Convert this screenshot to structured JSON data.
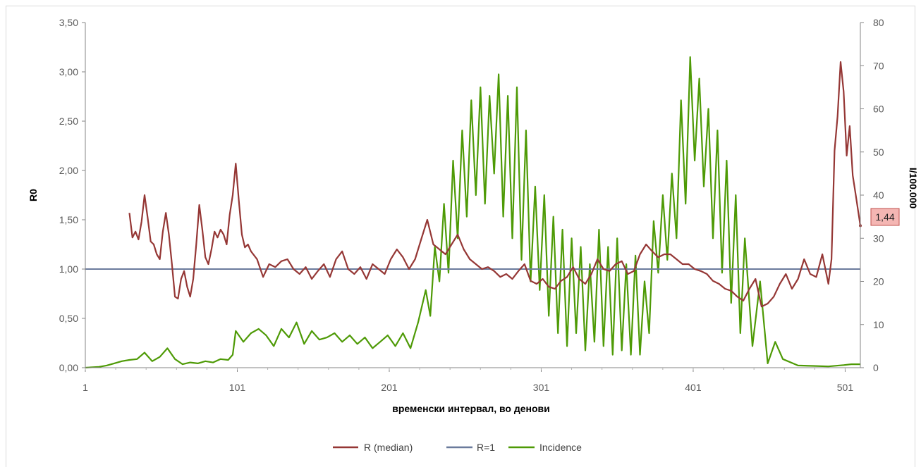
{
  "chart_data": {
    "type": "line",
    "xlabel": "временски интервал, во денови",
    "ylabel_left": "R0",
    "ylabel_right": "I/100.000",
    "x_ticks": [
      "1",
      "101",
      "201",
      "301",
      "401",
      "501"
    ],
    "x_tick_values": [
      1,
      101,
      201,
      301,
      401,
      501
    ],
    "xlim": [
      1,
      511
    ],
    "ylim_left": [
      0,
      3.5
    ],
    "y_ticks_left": [
      "0,00",
      "0,50",
      "1,00",
      "1,50",
      "2,00",
      "2,50",
      "3,00",
      "3,50"
    ],
    "ylim_right": [
      0,
      80
    ],
    "y_ticks_right": [
      "0",
      "10",
      "20",
      "30",
      "40",
      "50",
      "60",
      "70",
      "80"
    ],
    "grid": false,
    "legend_position": "bottom",
    "callout": {
      "text": "1,44",
      "x": 511,
      "y": 1.44,
      "axis": "left"
    },
    "series": [
      {
        "name": "R (median)",
        "axis": "left",
        "color": "#953735",
        "x": [
          30,
          32,
          34,
          36,
          38,
          40,
          42,
          44,
          46,
          48,
          50,
          52,
          54,
          56,
          58,
          60,
          62,
          64,
          66,
          68,
          70,
          72,
          74,
          76,
          78,
          80,
          82,
          84,
          86,
          88,
          90,
          92,
          94,
          96,
          98,
          100,
          102,
          104,
          106,
          108,
          110,
          114,
          118,
          122,
          126,
          130,
          134,
          138,
          142,
          146,
          150,
          154,
          158,
          162,
          166,
          170,
          174,
          178,
          182,
          186,
          190,
          194,
          198,
          202,
          206,
          210,
          214,
          218,
          222,
          226,
          230,
          234,
          238,
          242,
          246,
          250,
          254,
          258,
          262,
          266,
          270,
          274,
          278,
          282,
          286,
          290,
          294,
          298,
          302,
          306,
          310,
          314,
          318,
          322,
          326,
          330,
          334,
          338,
          342,
          346,
          350,
          354,
          358,
          362,
          366,
          370,
          374,
          378,
          382,
          386,
          390,
          394,
          398,
          402,
          406,
          410,
          414,
          418,
          422,
          426,
          430,
          434,
          438,
          442,
          446,
          450,
          454,
          458,
          462,
          466,
          470,
          474,
          478,
          482,
          486,
          490,
          492,
          494,
          496,
          498,
          500,
          502,
          504,
          506,
          508,
          511
        ],
        "values": [
          1.57,
          1.32,
          1.38,
          1.3,
          1.48,
          1.75,
          1.52,
          1.28,
          1.25,
          1.15,
          1.1,
          1.38,
          1.57,
          1.35,
          1.05,
          0.72,
          0.7,
          0.9,
          0.98,
          0.82,
          0.72,
          0.9,
          1.25,
          1.65,
          1.4,
          1.12,
          1.05,
          1.2,
          1.38,
          1.32,
          1.4,
          1.35,
          1.25,
          1.55,
          1.75,
          2.07,
          1.7,
          1.35,
          1.22,
          1.25,
          1.18,
          1.1,
          0.92,
          1.05,
          1.02,
          1.08,
          1.1,
          1.0,
          0.95,
          1.02,
          0.9,
          0.98,
          1.05,
          0.92,
          1.1,
          1.18,
          1.0,
          0.95,
          1.02,
          0.9,
          1.05,
          1.0,
          0.95,
          1.1,
          1.2,
          1.12,
          1.0,
          1.1,
          1.3,
          1.5,
          1.25,
          1.2,
          1.15,
          1.25,
          1.35,
          1.2,
          1.1,
          1.05,
          1.0,
          1.02,
          0.98,
          0.92,
          0.95,
          0.9,
          0.98,
          1.05,
          0.88,
          0.85,
          0.9,
          0.82,
          0.8,
          0.88,
          0.92,
          1.02,
          0.9,
          0.85,
          0.95,
          1.1,
          1.0,
          0.98,
          1.05,
          1.08,
          0.95,
          0.98,
          1.15,
          1.25,
          1.18,
          1.12,
          1.15,
          1.15,
          1.1,
          1.05,
          1.05,
          1.0,
          0.98,
          0.95,
          0.88,
          0.85,
          0.8,
          0.78,
          0.72,
          0.68,
          0.8,
          0.9,
          0.62,
          0.65,
          0.72,
          0.85,
          0.95,
          0.8,
          0.9,
          1.1,
          0.95,
          0.92,
          1.15,
          0.85,
          1.1,
          2.2,
          2.55,
          3.1,
          2.8,
          2.15,
          2.45,
          1.95,
          1.75,
          1.44
        ]
      },
      {
        "name": "R=1",
        "axis": "left",
        "color": "#6b7b9c",
        "x": [
          1,
          511
        ],
        "values": [
          1.0,
          1.0
        ]
      },
      {
        "name": "Incidence",
        "axis": "right",
        "color": "#4e9a06",
        "x": [
          1,
          10,
          15,
          20,
          25,
          30,
          35,
          40,
          45,
          50,
          55,
          60,
          65,
          70,
          75,
          80,
          85,
          90,
          95,
          98,
          100,
          105,
          110,
          115,
          120,
          125,
          130,
          135,
          140,
          145,
          150,
          155,
          160,
          165,
          170,
          175,
          180,
          185,
          190,
          195,
          200,
          205,
          210,
          215,
          220,
          225,
          228,
          231,
          234,
          237,
          240,
          243,
          246,
          249,
          252,
          255,
          258,
          261,
          264,
          267,
          270,
          273,
          276,
          279,
          282,
          285,
          288,
          291,
          294,
          297,
          300,
          303,
          306,
          309,
          312,
          315,
          318,
          321,
          324,
          327,
          330,
          333,
          336,
          339,
          342,
          345,
          348,
          351,
          354,
          357,
          360,
          363,
          366,
          369,
          372,
          375,
          378,
          381,
          384,
          387,
          390,
          393,
          396,
          399,
          402,
          405,
          408,
          411,
          414,
          417,
          420,
          423,
          426,
          429,
          432,
          435,
          440,
          445,
          450,
          455,
          460,
          470,
          480,
          490,
          500,
          505,
          511
        ],
        "values": [
          0,
          0.2,
          0.5,
          1.0,
          1.5,
          1.8,
          2.0,
          3.5,
          1.5,
          2.5,
          4.5,
          2.0,
          0.8,
          1.2,
          1.0,
          1.5,
          1.2,
          2.0,
          1.8,
          3.0,
          8.5,
          6.0,
          8.0,
          9.0,
          7.5,
          5.0,
          9.0,
          7.0,
          10.5,
          5.5,
          8.5,
          6.5,
          7.0,
          8.0,
          6.0,
          7.5,
          5.5,
          7.0,
          4.5,
          6.0,
          7.5,
          5.0,
          8.0,
          4.5,
          10.5,
          18.0,
          12.0,
          28.0,
          20.0,
          38.0,
          22.0,
          48.0,
          30.0,
          55.0,
          35.0,
          62.0,
          40.0,
          65.0,
          38.0,
          63.0,
          45.0,
          68.0,
          35.0,
          63.0,
          30.0,
          65.0,
          25.0,
          55.0,
          20.0,
          42.0,
          18.0,
          40.0,
          12.0,
          35.0,
          8.0,
          32.0,
          5.0,
          30.0,
          8.0,
          28.0,
          4.0,
          24.0,
          6.0,
          32.0,
          5.0,
          28.0,
          3.0,
          30.0,
          4.0,
          24.0,
          3.0,
          26.0,
          3.0,
          20.0,
          8.0,
          34.0,
          22.0,
          40.0,
          25.0,
          45.0,
          30.0,
          62.0,
          38.0,
          72.0,
          48.0,
          67.0,
          42.0,
          60.0,
          30.0,
          55.0,
          22.0,
          48.0,
          15.0,
          40.0,
          8.0,
          30.0,
          5.0,
          20.0,
          1.0,
          6.0,
          2.0,
          0.5,
          0.4,
          0.3,
          0.6,
          0.8,
          0.8
        ]
      }
    ]
  }
}
